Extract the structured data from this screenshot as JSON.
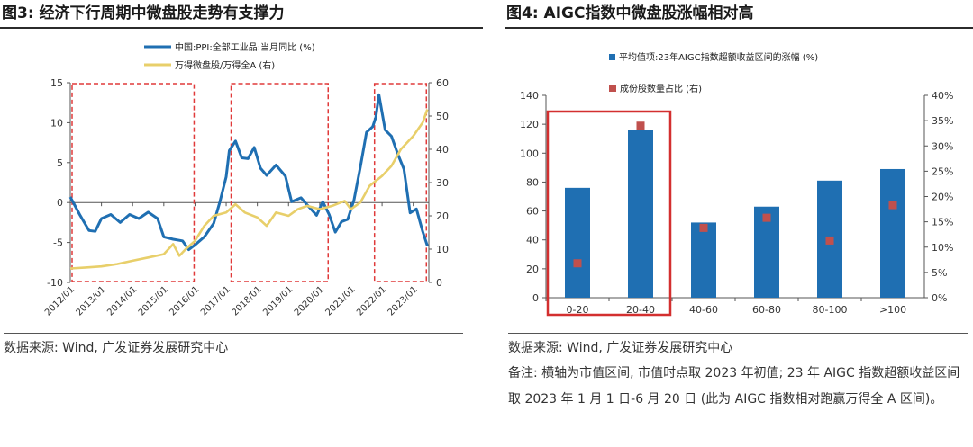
{
  "left": {
    "title": "图3: 经济下行周期中微盘股走势有支撑力",
    "source": "数据来源: Wind, 广发证券发展研究中心"
  },
  "right": {
    "title": "图4: AIGC指数中微盘股涨幅相对高",
    "source": "数据来源: Wind, 广发证券发展研究中心",
    "note": "备注: 横轴为市值区间, 市值时点取 2023 年初值; 23 年 AIGC 指数超额收益区间取 2023 年 1 月 1 日-6 月 20 日 (此为 AIGC 指数相对跑赢万得全 A 区间)。"
  },
  "chart_data": [
    {
      "type": "line",
      "title": "",
      "xlabel": "",
      "ylabel": "",
      "x_ticks": [
        "2012/01",
        "2013/01",
        "2014/01",
        "2015/01",
        "2016/01",
        "2017/01",
        "2018/01",
        "2019/01",
        "2020/01",
        "2021/01",
        "2022/01",
        "2023/01"
      ],
      "ylim_left": [
        -10,
        15
      ],
      "yticks_left": [
        "-10",
        "-5",
        "0",
        "5",
        "10",
        "15"
      ],
      "ylim_right": [
        0,
        60
      ],
      "yticks_right": [
        "0",
        "10",
        "20",
        "30",
        "40",
        "50",
        "60"
      ],
      "series": [
        {
          "name": "中国:PPI:全部工业品:当月同比 (%)",
          "axis": "left",
          "color": "#1f6fb2",
          "x": [
            2012.0,
            2012.3,
            2012.6,
            2012.8,
            2013.0,
            2013.3,
            2013.6,
            2013.9,
            2014.2,
            2014.5,
            2014.8,
            2015.0,
            2015.3,
            2015.6,
            2015.8,
            2016.0,
            2016.3,
            2016.6,
            2016.8,
            2017.0,
            2017.1,
            2017.3,
            2017.5,
            2017.7,
            2017.9,
            2018.1,
            2018.3,
            2018.6,
            2018.9,
            2019.1,
            2019.4,
            2019.6,
            2019.9,
            2020.1,
            2020.3,
            2020.5,
            2020.7,
            2020.9,
            2021.1,
            2021.3,
            2021.5,
            2021.7,
            2021.8,
            2021.9,
            2022.1,
            2022.3,
            2022.5,
            2022.7,
            2022.9,
            2023.1,
            2023.3,
            2023.45
          ],
          "y": [
            0.7,
            -1.5,
            -3.5,
            -3.6,
            -2.0,
            -1.5,
            -2.5,
            -1.5,
            -2.0,
            -1.2,
            -2.0,
            -4.3,
            -4.6,
            -4.8,
            -5.9,
            -5.3,
            -4.3,
            -2.6,
            0.1,
            3.2,
            6.5,
            7.7,
            5.6,
            5.5,
            6.9,
            4.3,
            3.4,
            4.7,
            3.3,
            0.1,
            0.6,
            -0.3,
            -1.6,
            0.1,
            -1.5,
            -3.7,
            -2.4,
            -2.1,
            0.3,
            4.4,
            8.8,
            9.5,
            10.7,
            13.5,
            9.1,
            8.3,
            6.1,
            4.2,
            -1.3,
            -0.8,
            -3.6,
            -5.4
          ]
        },
        {
          "name": "万得微盘股/万得全A (右)",
          "axis": "right",
          "color": "#e8cf6a",
          "x": [
            2012.0,
            2012.5,
            2013.0,
            2013.5,
            2014.0,
            2014.5,
            2015.0,
            2015.3,
            2015.5,
            2015.7,
            2016.0,
            2016.3,
            2016.6,
            2017.0,
            2017.3,
            2017.6,
            2018.0,
            2018.3,
            2018.6,
            2019.0,
            2019.3,
            2019.6,
            2020.0,
            2020.4,
            2020.8,
            2021.0,
            2021.3,
            2021.6,
            2022.0,
            2022.3,
            2022.6,
            2023.0,
            2023.3,
            2023.45
          ],
          "y": [
            4.2,
            4.5,
            4.8,
            5.5,
            6.5,
            7.5,
            8.5,
            11.5,
            8.0,
            10.0,
            12.5,
            17.0,
            20.0,
            21.0,
            23.5,
            21.0,
            19.5,
            17.0,
            21.0,
            20.0,
            22.0,
            23.0,
            22.0,
            23.0,
            24.5,
            22.0,
            24.0,
            29.0,
            32.0,
            35.0,
            40.0,
            44.0,
            48.0,
            52.0
          ]
        }
      ],
      "highlight_boxes": [
        {
          "x": [
            2012.0,
            2016.0
          ]
        },
        {
          "x": [
            2017.1,
            2020.3
          ]
        },
        {
          "x": [
            2021.7,
            2023.45
          ]
        }
      ],
      "grid": false,
      "legend_position": "top"
    },
    {
      "type": "bar",
      "title": "",
      "categories": [
        "0-20",
        "20-40",
        "40-60",
        "60-80",
        "80-100",
        ">100"
      ],
      "ylim_left": [
        0,
        140
      ],
      "yticks_left": [
        "0",
        "20",
        "40",
        "60",
        "80",
        "100",
        "120",
        "140"
      ],
      "ylim_right": [
        0,
        40
      ],
      "yticks_right": [
        "0%",
        "5%",
        "10%",
        "15%",
        "20%",
        "25%",
        "30%",
        "35%",
        "40%"
      ],
      "series": [
        {
          "name": "平均值项:23年AIGC指数超额收益区间的涨幅 (%)",
          "type": "bar",
          "axis": "left",
          "color": "#1f6fb2",
          "values": [
            76,
            116,
            52,
            63,
            81,
            89
          ]
        },
        {
          "name": "成份股数量占比 (右)",
          "type": "scatter",
          "axis": "right",
          "color": "#c0504d",
          "values": [
            6.8,
            34.0,
            13.8,
            15.8,
            11.3,
            18.3
          ]
        }
      ],
      "highlight_categories": [
        "0-20",
        "20-40"
      ],
      "grid": false,
      "legend_position": "top"
    }
  ]
}
